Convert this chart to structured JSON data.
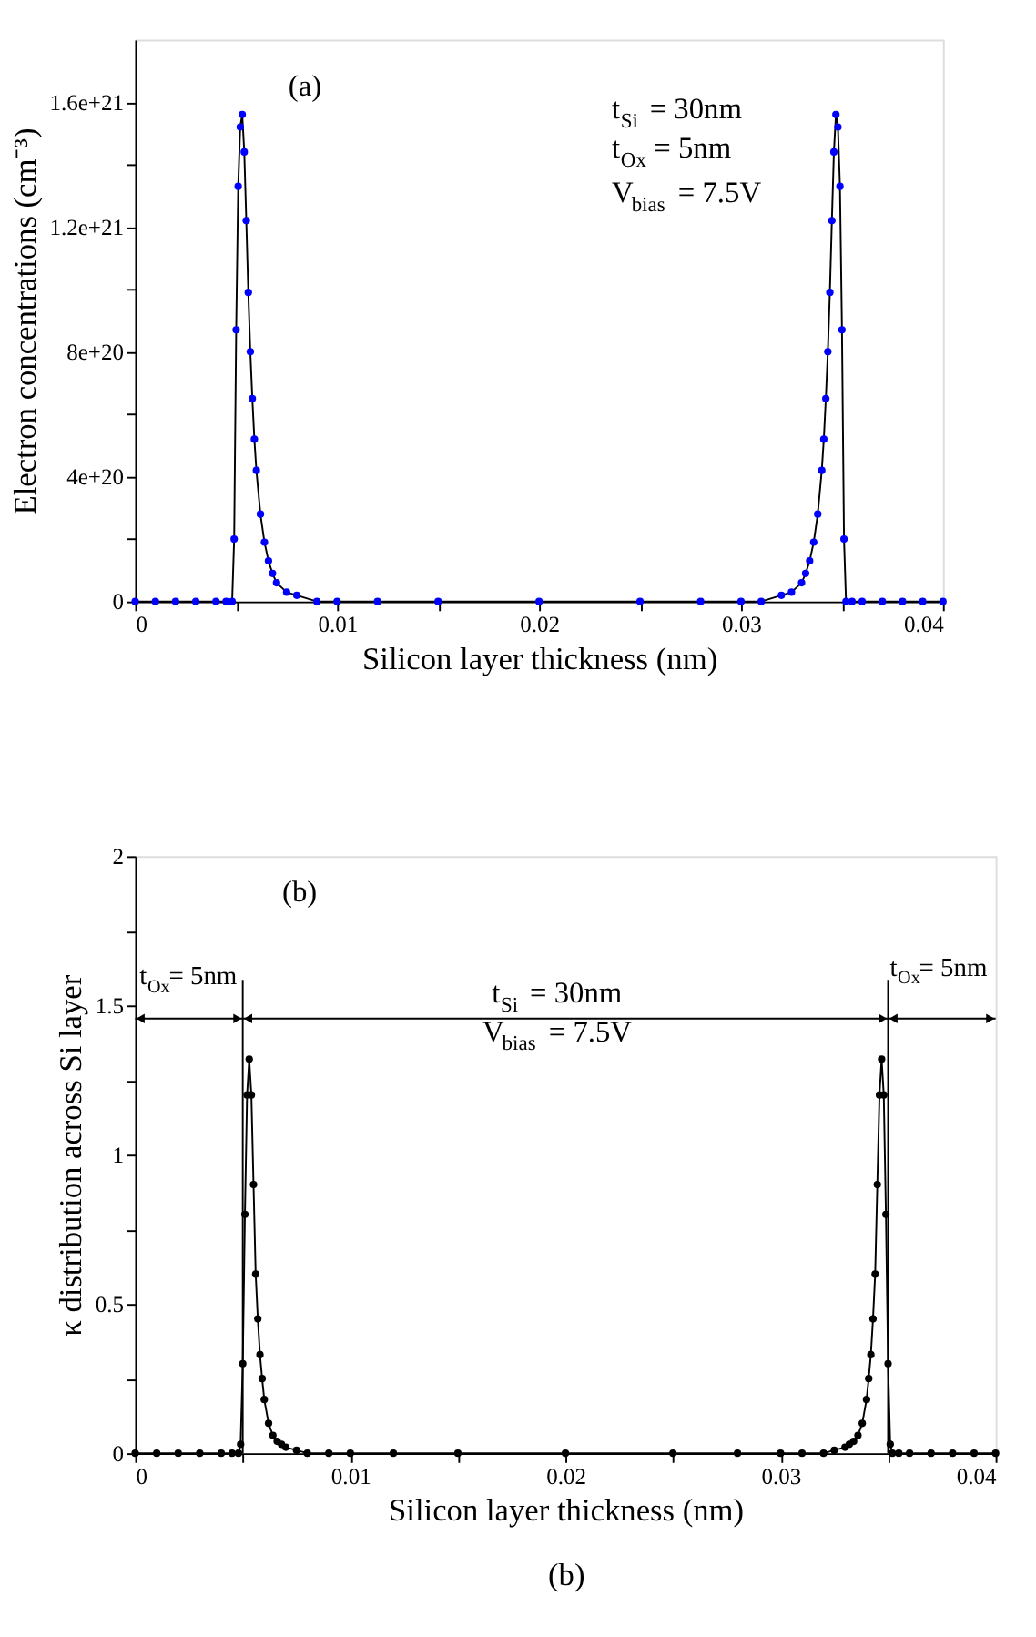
{
  "chart_data": [
    {
      "type": "line",
      "xlabel": "Silicon layer thickness (nm)",
      "ylabel": "Electron concentrations (cm⁻³)",
      "annotations": [
        "(a)",
        "t$_{Si}$ = 30nm",
        "t$_{Ox}$ = 5nm",
        "V$_{bias}$ = 7.5V"
      ],
      "xlim": [
        0,
        0.04
      ],
      "ylim": [
        0,
        1.8e+21
      ],
      "xticks": [
        0,
        {
          "value": 0.005,
          "label": null
        },
        0.01,
        {
          "value": 0.015,
          "label": null
        },
        0.02,
        {
          "value": 0.025,
          "label": null
        },
        0.03,
        {
          "value": 0.035,
          "label": null
        },
        0.04
      ],
      "yticks": [
        0,
        {
          "value": 2e+20,
          "label": null
        },
        {
          "value": 4e+20,
          "label": "4e+20"
        },
        {
          "value": 6e+20,
          "label": null
        },
        {
          "value": 8e+20,
          "label": "8e+20"
        },
        {
          "value": 1e+21,
          "label": null
        },
        {
          "value": 1.2e+21,
          "label": "1.2e+21"
        },
        {
          "value": 1.4e+21,
          "label": null
        },
        {
          "value": 1.6e+21,
          "label": "1.6e+21"
        }
      ],
      "grid": false,
      "legend": false,
      "marker": "circle",
      "line_style": "solid",
      "series": [
        {
          "color": "#0000ff",
          "x": [
            0,
            0.001,
            0.002,
            0.003,
            0.004,
            0.0045,
            0.0048,
            0.0049,
            0.005,
            0.0051,
            0.0052,
            0.0053,
            0.0054,
            0.0055,
            0.0056,
            0.0057,
            0.0058,
            0.0059,
            0.006,
            0.0062,
            0.0064,
            0.0066,
            0.0068,
            0.007,
            0.0075,
            0.008,
            0.009,
            0.01,
            0.012,
            0.015,
            0.02,
            0.025,
            0.028,
            0.03,
            0.031,
            0.032,
            0.0325,
            0.033,
            0.0332,
            0.0334,
            0.0336,
            0.0338,
            0.034,
            0.0341,
            0.0342,
            0.0343,
            0.0344,
            0.0345,
            0.0346,
            0.0347,
            0.0348,
            0.0349,
            0.035,
            0.0351,
            0.0352,
            0.0355,
            0.036,
            0.037,
            0.038,
            0.039,
            0.04
          ],
          "values": [
            0,
            0,
            0,
            0,
            0,
            0,
            0,
            2e+20,
            8.7e+20,
            1.33e+21,
            1.52e+21,
            1.56e+21,
            1.44e+21,
            1.22e+21,
            9.9e+20,
            8e+20,
            6.5e+20,
            5.2e+20,
            4.2e+20,
            2.8e+20,
            1.9e+20,
            1.3e+20,
            9e+19,
            6e+19,
            3e+19,
            2e+19,
            0,
            0,
            0,
            0,
            0,
            0,
            0,
            0,
            0,
            2e+19,
            3e+19,
            6e+19,
            9e+19,
            1.3e+20,
            1.9e+20,
            2.8e+20,
            4.2e+20,
            5.2e+20,
            6.5e+20,
            8e+20,
            9.9e+20,
            1.22e+21,
            1.44e+21,
            1.56e+21,
            1.52e+21,
            1.33e+21,
            8.7e+20,
            2e+20,
            0,
            0,
            0,
            0,
            0,
            0,
            0
          ]
        }
      ]
    },
    {
      "type": "line",
      "xlabel": "Silicon layer thickness (nm)",
      "ylabel": "κ distribution across Si layer",
      "annotations": [
        "(b)",
        "t$_{Ox}$= 5nm",
        "t$_{Si}$ = 30nm",
        "t$_{Ox}$= 5nm",
        "V$_{bias}$ = 7.5V",
        "(b)"
      ],
      "ref_lines": [
        {
          "axis": "x",
          "value": 0.005
        },
        {
          "axis": "x",
          "value": 0.035
        }
      ],
      "xlim": [
        0,
        0.04
      ],
      "ylim": [
        0,
        2
      ],
      "xticks": [
        0,
        {
          "value": 0.005,
          "label": null
        },
        0.01,
        {
          "value": 0.015,
          "label": null
        },
        0.02,
        {
          "value": 0.025,
          "label": null
        },
        0.03,
        {
          "value": 0.035,
          "label": null
        },
        0.04
      ],
      "yticks": [
        0,
        {
          "value": 0.25,
          "label": null
        },
        0.5,
        {
          "value": 0.75,
          "label": null
        },
        1,
        {
          "value": 1.25,
          "label": null
        },
        1.5,
        {
          "value": 1.75,
          "label": null
        },
        2
      ],
      "grid": false,
      "legend": false,
      "marker": "circle",
      "line_style": "solid",
      "series": [
        {
          "color": "#000000",
          "x": [
            0,
            0.001,
            0.002,
            0.003,
            0.004,
            0.0045,
            0.0048,
            0.0049,
            0.005,
            0.0051,
            0.0052,
            0.0053,
            0.0054,
            0.0055,
            0.0056,
            0.0057,
            0.0058,
            0.0059,
            0.006,
            0.0062,
            0.0064,
            0.0066,
            0.0068,
            0.007,
            0.0075,
            0.008,
            0.009,
            0.01,
            0.012,
            0.015,
            0.02,
            0.025,
            0.028,
            0.03,
            0.031,
            0.032,
            0.0325,
            0.033,
            0.0332,
            0.0334,
            0.0336,
            0.0338,
            0.034,
            0.0341,
            0.0342,
            0.0343,
            0.0344,
            0.0345,
            0.0346,
            0.0347,
            0.0348,
            0.0349,
            0.035,
            0.0351,
            0.0352,
            0.0355,
            0.036,
            0.037,
            0.038,
            0.039,
            0.04
          ],
          "values": [
            0,
            0,
            0,
            0,
            0,
            0,
            0,
            0.03,
            0.3,
            0.8,
            1.2,
            1.32,
            1.2,
            0.9,
            0.6,
            0.45,
            0.33,
            0.25,
            0.18,
            0.1,
            0.06,
            0.04,
            0.03,
            0.02,
            0.01,
            0,
            0,
            0,
            0,
            0,
            0,
            0,
            0,
            0,
            0,
            0,
            0.01,
            0.02,
            0.03,
            0.04,
            0.06,
            0.1,
            0.18,
            0.25,
            0.33,
            0.45,
            0.6,
            0.9,
            1.2,
            1.32,
            1.2,
            0.8,
            0.3,
            0.03,
            0,
            0,
            0,
            0,
            0,
            0,
            0
          ]
        }
      ]
    }
  ]
}
